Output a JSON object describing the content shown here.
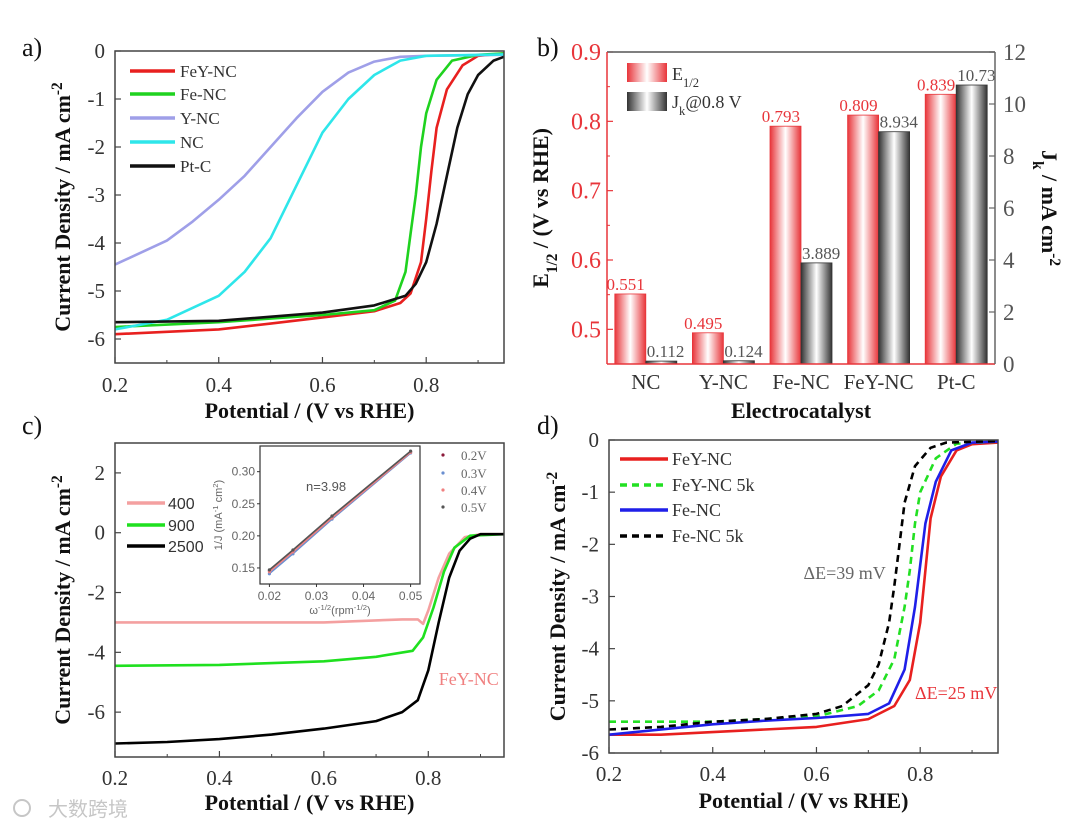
{
  "panel_labels": [
    "a)",
    "b)",
    "c)",
    "d)"
  ],
  "watermark": "大数跨境",
  "chart_data": [
    {
      "type": "line",
      "panel": "a)",
      "xlabel": "Potential / (V vs RHE)",
      "ylabel": {
        "main": "Current Density / mA cm",
        "sup": "-2"
      },
      "xlim": [
        0.2,
        0.95
      ],
      "ylim": [
        -6.5,
        0
      ],
      "xticks": [
        0.2,
        0.4,
        0.6,
        0.8
      ],
      "xtick_labels": [
        "0.2",
        "0.4",
        "0.6",
        "0.8"
      ],
      "yticks": [
        0,
        -1,
        -2,
        -3,
        -4,
        -5,
        -6
      ],
      "ytick_labels": [
        "0",
        "-1",
        "-2",
        "-3",
        "-4",
        "-5",
        "-6"
      ],
      "legend_position": "top-left",
      "series": [
        {
          "name": "FeY-NC",
          "color": "#e8201f",
          "dash": false,
          "x": [
            0.2,
            0.3,
            0.4,
            0.5,
            0.6,
            0.7,
            0.75,
            0.77,
            0.79,
            0.8,
            0.81,
            0.82,
            0.84,
            0.87,
            0.9,
            0.95
          ],
          "y": [
            -5.9,
            -5.85,
            -5.8,
            -5.68,
            -5.55,
            -5.42,
            -5.25,
            -5.05,
            -4.4,
            -3.5,
            -2.5,
            -1.6,
            -0.8,
            -0.3,
            -0.1,
            -0.05
          ]
        },
        {
          "name": "Fe-NC",
          "color": "#1fd21f",
          "dash": false,
          "x": [
            0.2,
            0.4,
            0.6,
            0.7,
            0.74,
            0.76,
            0.77,
            0.78,
            0.79,
            0.8,
            0.82,
            0.85,
            0.9,
            0.95
          ],
          "y": [
            -5.75,
            -5.65,
            -5.5,
            -5.4,
            -5.2,
            -4.6,
            -3.8,
            -3.0,
            -2.0,
            -1.3,
            -0.6,
            -0.2,
            -0.08,
            -0.05
          ]
        },
        {
          "name": "Y-NC",
          "color": "#9f9fe8",
          "dash": false,
          "x": [
            0.2,
            0.3,
            0.35,
            0.4,
            0.45,
            0.5,
            0.55,
            0.6,
            0.65,
            0.7,
            0.75,
            0.8,
            0.95
          ],
          "y": [
            -4.45,
            -3.95,
            -3.55,
            -3.1,
            -2.6,
            -2.0,
            -1.4,
            -0.85,
            -0.45,
            -0.22,
            -0.12,
            -0.1,
            -0.08
          ]
        },
        {
          "name": "NC",
          "color": "#2ee6ea",
          "dash": false,
          "x": [
            0.2,
            0.3,
            0.35,
            0.4,
            0.45,
            0.5,
            0.55,
            0.6,
            0.65,
            0.7,
            0.75,
            0.8,
            0.95
          ],
          "y": [
            -5.8,
            -5.6,
            -5.35,
            -5.1,
            -4.6,
            -3.9,
            -2.8,
            -1.7,
            -1.0,
            -0.5,
            -0.2,
            -0.1,
            -0.07
          ]
        },
        {
          "name": "Pt-C",
          "color": "#111111",
          "dash": false,
          "x": [
            0.2,
            0.4,
            0.6,
            0.7,
            0.76,
            0.78,
            0.8,
            0.82,
            0.84,
            0.86,
            0.88,
            0.9,
            0.93,
            0.95
          ],
          "y": [
            -5.65,
            -5.62,
            -5.45,
            -5.3,
            -5.1,
            -4.85,
            -4.4,
            -3.6,
            -2.6,
            -1.6,
            -0.9,
            -0.5,
            -0.2,
            -0.12
          ]
        }
      ]
    },
    {
      "type": "bar",
      "panel": "b)",
      "xlabel": "Electrocatalyst",
      "ylabel": {
        "main": "E",
        "sub": "1/2",
        "rest": " / (V vs RHE)"
      },
      "ylabel_right": {
        "main": "J",
        "sub": "k",
        "rest": " / mA cm",
        "sup": "-2"
      },
      "categories": [
        "NC",
        "Y-NC",
        "Fe-NC",
        "FeY-NC",
        "Pt-C"
      ],
      "ylim": [
        0.45,
        0.9
      ],
      "ylim_right": [
        0,
        12
      ],
      "yticks": [
        0.5,
        0.6,
        0.7,
        0.8,
        0.9
      ],
      "ytick_labels": [
        "0.5",
        "0.6",
        "0.7",
        "0.8",
        "0.9"
      ],
      "yticks_right": [
        0,
        2,
        4,
        6,
        8,
        10,
        12
      ],
      "ytick_labels_right": [
        "0",
        "2",
        "4",
        "6",
        "8",
        "10",
        "12"
      ],
      "legend_position": "top-left",
      "series": [
        {
          "name": "E",
          "name_sub": "1/2",
          "color": "#e8353a",
          "axis": "left",
          "values": [
            0.551,
            0.495,
            0.793,
            0.809,
            0.839
          ],
          "labels": [
            "0.551",
            "0.495",
            "0.793",
            "0.809",
            "0.839"
          ]
        },
        {
          "name": "J",
          "name_sub": "k",
          "name_rest": "@0.8 V",
          "color": "#3a3a3a",
          "axis": "right",
          "values": [
            0.112,
            0.124,
            3.889,
            8.934,
            10.73
          ],
          "labels": [
            "0.112",
            "0.124",
            "3.889",
            "8.934",
            "10.73"
          ]
        }
      ]
    },
    {
      "type": "line",
      "panel": "c)",
      "xlabel": "Potential / (V vs RHE)",
      "ylabel": {
        "main": "Current Density / mA cm",
        "sup": "-2"
      },
      "xlim": [
        0.2,
        0.945
      ],
      "ylim": [
        -7.5,
        3
      ],
      "xticks": [
        0.2,
        0.4,
        0.6,
        0.8
      ],
      "xtick_labels": [
        "0.2",
        "0.4",
        "0.6",
        "0.8"
      ],
      "yticks": [
        2,
        0,
        -2,
        -4,
        -6
      ],
      "ytick_labels": [
        "2",
        "0",
        "-2",
        "-4",
        "-6"
      ],
      "legend_position": "top-left",
      "annotation": {
        "text": "FeY-NC",
        "color": "#f08080",
        "x": 0.82,
        "y": -4.9
      },
      "series": [
        {
          "name": "400",
          "color": "#f4a0a0",
          "dash": false,
          "x": [
            0.2,
            0.6,
            0.75,
            0.78,
            0.79,
            0.8,
            0.82,
            0.84,
            0.87,
            0.9,
            0.945
          ],
          "y": [
            -3.0,
            -3.0,
            -2.9,
            -2.9,
            -3.05,
            -2.6,
            -1.5,
            -0.7,
            -0.15,
            -0.05,
            -0.05
          ]
        },
        {
          "name": "900",
          "color": "#1fe01f",
          "dash": false,
          "x": [
            0.2,
            0.4,
            0.6,
            0.7,
            0.77,
            0.79,
            0.81,
            0.83,
            0.85,
            0.88,
            0.945
          ],
          "y": [
            -4.45,
            -4.42,
            -4.3,
            -4.15,
            -3.95,
            -3.5,
            -2.5,
            -1.3,
            -0.5,
            -0.1,
            -0.05
          ]
        },
        {
          "name": "2500",
          "color": "#000000",
          "dash": false,
          "x": [
            0.2,
            0.3,
            0.4,
            0.5,
            0.6,
            0.7,
            0.75,
            0.78,
            0.8,
            0.82,
            0.84,
            0.86,
            0.88,
            0.9,
            0.945
          ],
          "y": [
            -7.05,
            -7.0,
            -6.9,
            -6.75,
            -6.55,
            -6.3,
            -6.0,
            -5.6,
            -4.6,
            -3.0,
            -1.5,
            -0.6,
            -0.2,
            -0.05,
            -0.05
          ]
        }
      ],
      "inset": {
        "type": "scatter",
        "xlabel": {
          "main": "ω",
          "sup": "-1/2",
          "rest": "(rpm",
          "sup2": "-1/2",
          "end": ")"
        },
        "ylabel": {
          "main": "1/J (mA",
          "sup": "-1",
          "rest": " cm",
          "sup2": "2",
          "end": ")"
        },
        "xlim": [
          0.018,
          0.052
        ],
        "ylim": [
          0.125,
          0.34
        ],
        "xticks": [
          0.02,
          0.03,
          0.04,
          0.05
        ],
        "xtick_labels": [
          "0.02",
          "0.03",
          "0.04",
          "0.05"
        ],
        "yticks": [
          0.15,
          0.2,
          0.25,
          0.3
        ],
        "ytick_labels": [
          "0.15",
          "0.20",
          "0.25",
          "0.30"
        ],
        "annotation": "n=3.98",
        "x": [
          0.02,
          0.025,
          0.0333,
          0.05
        ],
        "series": [
          {
            "name": "0.2V",
            "color": "#8b1a3a",
            "y": [
              0.146,
              0.176,
              0.229,
              0.331
            ]
          },
          {
            "name": "0.3V",
            "color": "#6a8fd0",
            "y": [
              0.141,
              0.172,
              0.226,
              0.329
            ]
          },
          {
            "name": "0.4V",
            "color": "#f08080",
            "y": [
              0.144,
              0.175,
              0.228,
              0.33
            ]
          },
          {
            "name": "0.5V",
            "color": "#555555",
            "y": [
              0.147,
              0.178,
              0.231,
              0.332
            ]
          }
        ]
      }
    },
    {
      "type": "line",
      "panel": "d)",
      "xlabel": "Potential / (V vs RHE)",
      "ylabel": {
        "main": "Current Density / mA cm",
        "sup": "-2"
      },
      "xlim": [
        0.2,
        0.95
      ],
      "ylim": [
        -6,
        0
      ],
      "xticks": [
        0.2,
        0.4,
        0.6,
        0.8
      ],
      "xtick_labels": [
        "0.2",
        "0.4",
        "0.6",
        "0.8"
      ],
      "yticks": [
        0,
        -1,
        -2,
        -3,
        -4,
        -5,
        -6
      ],
      "ytick_labels": [
        "0",
        "-1",
        "-2",
        "-3",
        "-4",
        "-5",
        "-6"
      ],
      "legend_position": "top-left",
      "annotations": [
        {
          "text": "ΔE=39 mV",
          "color": "#666666",
          "x": 0.575,
          "y": -2.55
        },
        {
          "text": "ΔE=25 mV",
          "color": "#e8353a",
          "x": 0.79,
          "y": -4.85
        }
      ],
      "series": [
        {
          "name": "FeY-NC",
          "color": "#e8201f",
          "dash": false,
          "x": [
            0.2,
            0.3,
            0.4,
            0.5,
            0.6,
            0.7,
            0.75,
            0.78,
            0.8,
            0.81,
            0.82,
            0.84,
            0.87,
            0.9,
            0.95
          ],
          "y": [
            -5.65,
            -5.65,
            -5.6,
            -5.55,
            -5.5,
            -5.35,
            -5.1,
            -4.6,
            -3.5,
            -2.5,
            -1.5,
            -0.7,
            -0.2,
            -0.08,
            -0.05
          ]
        },
        {
          "name": "FeY-NC 5k",
          "color": "#22e022",
          "dash": true,
          "x": [
            0.2,
            0.4,
            0.6,
            0.68,
            0.72,
            0.75,
            0.77,
            0.78,
            0.79,
            0.8,
            0.83,
            0.87,
            0.95
          ],
          "y": [
            -5.4,
            -5.4,
            -5.3,
            -5.1,
            -4.8,
            -4.2,
            -3.2,
            -2.5,
            -1.6,
            -1.0,
            -0.35,
            -0.07,
            -0.03
          ]
        },
        {
          "name": "Fe-NC",
          "color": "#1f1fe8",
          "dash": false,
          "x": [
            0.2,
            0.4,
            0.5,
            0.6,
            0.7,
            0.74,
            0.77,
            0.79,
            0.8,
            0.81,
            0.83,
            0.86,
            0.9,
            0.95
          ],
          "y": [
            -5.65,
            -5.45,
            -5.38,
            -5.33,
            -5.25,
            -5.05,
            -4.4,
            -3.2,
            -2.4,
            -1.6,
            -0.8,
            -0.2,
            -0.05,
            -0.03
          ]
        },
        {
          "name": "Fe-NC 5k",
          "color": "#000000",
          "dash": true,
          "x": [
            0.2,
            0.3,
            0.4,
            0.5,
            0.6,
            0.65,
            0.7,
            0.72,
            0.74,
            0.75,
            0.76,
            0.77,
            0.79,
            0.82,
            0.85,
            0.95
          ],
          "y": [
            -5.55,
            -5.5,
            -5.4,
            -5.35,
            -5.25,
            -5.1,
            -4.7,
            -4.3,
            -3.5,
            -2.8,
            -2.0,
            -1.2,
            -0.5,
            -0.15,
            -0.05,
            -0.02
          ]
        }
      ]
    }
  ]
}
